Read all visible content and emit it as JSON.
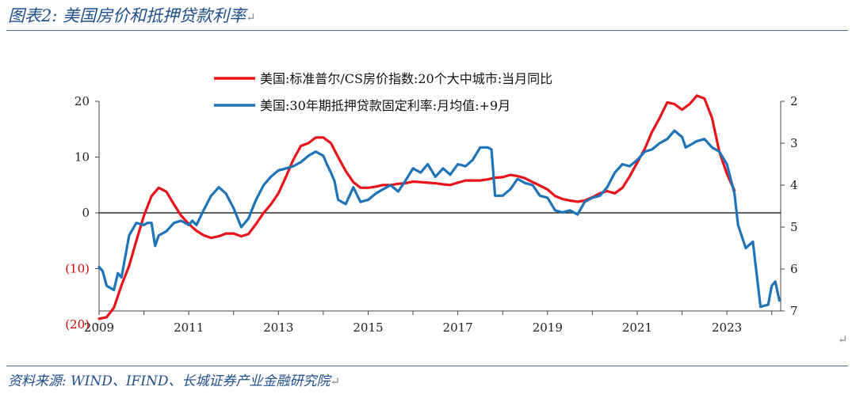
{
  "figure": {
    "title": "图表2:  美国房价和抵押贷款利率",
    "source": "资料来源:  WIND、IFIND、长城证券产业金融研究院",
    "return_mark": "↵"
  },
  "chart_data": {
    "type": "line",
    "x_axis": {
      "min": 2009,
      "max": 2024.2,
      "tick_labels": [
        "2009",
        "2011",
        "2013",
        "2015",
        "2017",
        "2019",
        "2021",
        "2023"
      ]
    },
    "y_left": {
      "min": -20,
      "max": 20,
      "ticks": [
        20,
        10,
        0,
        -10,
        -20
      ],
      "tick_labels": [
        "20",
        "10",
        "0",
        "(10)",
        "(20)"
      ]
    },
    "y_right": {
      "min": 2,
      "max": 7,
      "inverted": true,
      "ticks": [
        2,
        3,
        4,
        5,
        6,
        7
      ],
      "tick_labels": [
        "2",
        "3",
        "4",
        "5",
        "6",
        "7"
      ]
    },
    "grid": false,
    "legend": {
      "position": "top-center"
    },
    "colors": {
      "cs_index": "#e8141b",
      "mortgage_rate": "#1f73b7",
      "axis": "#444444"
    },
    "series": [
      {
        "name": "美国:标准普尔/CS房价指数:20个大中城市:当月同比",
        "axis": "left",
        "color": "#e8141b",
        "points": [
          [
            2009.0,
            -19.0
          ],
          [
            2009.17,
            -18.7
          ],
          [
            2009.33,
            -17.0
          ],
          [
            2009.5,
            -13.0
          ],
          [
            2009.67,
            -9.5
          ],
          [
            2009.83,
            -5.0
          ],
          [
            2010.0,
            -0.5
          ],
          [
            2010.17,
            3.0
          ],
          [
            2010.33,
            4.5
          ],
          [
            2010.5,
            3.8
          ],
          [
            2010.67,
            1.5
          ],
          [
            2010.83,
            -0.5
          ],
          [
            2011.0,
            -2.0
          ],
          [
            2011.17,
            -3.2
          ],
          [
            2011.33,
            -4.0
          ],
          [
            2011.5,
            -4.5
          ],
          [
            2011.67,
            -4.2
          ],
          [
            2011.83,
            -3.7
          ],
          [
            2012.0,
            -3.7
          ],
          [
            2012.17,
            -4.2
          ],
          [
            2012.33,
            -3.8
          ],
          [
            2012.5,
            -2.0
          ],
          [
            2012.67,
            0.0
          ],
          [
            2012.83,
            1.5
          ],
          [
            2013.0,
            3.5
          ],
          [
            2013.17,
            6.5
          ],
          [
            2013.33,
            9.5
          ],
          [
            2013.5,
            12.0
          ],
          [
            2013.67,
            12.5
          ],
          [
            2013.83,
            13.5
          ],
          [
            2014.0,
            13.5
          ],
          [
            2014.17,
            12.5
          ],
          [
            2014.33,
            10.0
          ],
          [
            2014.5,
            7.5
          ],
          [
            2014.67,
            5.5
          ],
          [
            2014.83,
            4.5
          ],
          [
            2015.0,
            4.5
          ],
          [
            2015.17,
            4.7
          ],
          [
            2015.33,
            5.0
          ],
          [
            2015.5,
            5.0
          ],
          [
            2015.67,
            5.2
          ],
          [
            2015.83,
            5.3
          ],
          [
            2016.0,
            5.6
          ],
          [
            2016.17,
            5.5
          ],
          [
            2016.33,
            5.4
          ],
          [
            2016.5,
            5.3
          ],
          [
            2016.67,
            5.1
          ],
          [
            2016.83,
            5.0
          ],
          [
            2017.0,
            5.4
          ],
          [
            2017.17,
            5.8
          ],
          [
            2017.33,
            5.8
          ],
          [
            2017.5,
            5.8
          ],
          [
            2017.67,
            6.0
          ],
          [
            2017.83,
            6.3
          ],
          [
            2018.0,
            6.4
          ],
          [
            2018.17,
            6.8
          ],
          [
            2018.33,
            6.6
          ],
          [
            2018.5,
            6.2
          ],
          [
            2018.67,
            5.5
          ],
          [
            2018.83,
            4.9
          ],
          [
            2019.0,
            4.2
          ],
          [
            2019.17,
            3.0
          ],
          [
            2019.33,
            2.5
          ],
          [
            2019.5,
            2.2
          ],
          [
            2019.67,
            2.0
          ],
          [
            2019.83,
            2.2
          ],
          [
            2020.0,
            2.8
          ],
          [
            2020.17,
            3.5
          ],
          [
            2020.33,
            3.9
          ],
          [
            2020.5,
            3.5
          ],
          [
            2020.67,
            4.5
          ],
          [
            2020.83,
            6.5
          ],
          [
            2021.0,
            9.0
          ],
          [
            2021.17,
            11.5
          ],
          [
            2021.33,
            14.5
          ],
          [
            2021.5,
            17.0
          ],
          [
            2021.67,
            19.8
          ],
          [
            2021.83,
            19.5
          ],
          [
            2022.0,
            18.5
          ],
          [
            2022.17,
            19.5
          ],
          [
            2022.33,
            21.0
          ],
          [
            2022.5,
            20.5
          ],
          [
            2022.67,
            17.0
          ],
          [
            2022.83,
            11.0
          ],
          [
            2023.0,
            7.0
          ],
          [
            2023.17,
            4.0
          ]
        ]
      },
      {
        "name": "美国:30年期抵押贷款固定利率:月均值:+9月",
        "axis": "right",
        "color": "#1f73b7",
        "points": [
          [
            2009.0,
            5.95
          ],
          [
            2009.08,
            6.05
          ],
          [
            2009.17,
            6.4
          ],
          [
            2009.33,
            6.5
          ],
          [
            2009.42,
            6.1
          ],
          [
            2009.5,
            6.2
          ],
          [
            2009.67,
            5.2
          ],
          [
            2009.83,
            4.9
          ],
          [
            2010.0,
            4.95
          ],
          [
            2010.08,
            4.9
          ],
          [
            2010.17,
            4.9
          ],
          [
            2010.25,
            5.45
          ],
          [
            2010.33,
            5.2
          ],
          [
            2010.5,
            5.1
          ],
          [
            2010.67,
            4.9
          ],
          [
            2010.83,
            4.85
          ],
          [
            2011.0,
            4.95
          ],
          [
            2011.08,
            4.85
          ],
          [
            2011.17,
            4.95
          ],
          [
            2011.33,
            4.6
          ],
          [
            2011.5,
            4.25
          ],
          [
            2011.67,
            4.05
          ],
          [
            2011.83,
            4.2
          ],
          [
            2012.0,
            4.55
          ],
          [
            2012.17,
            5.0
          ],
          [
            2012.33,
            4.8
          ],
          [
            2012.5,
            4.35
          ],
          [
            2012.67,
            4.0
          ],
          [
            2012.83,
            3.8
          ],
          [
            2013.0,
            3.65
          ],
          [
            2013.17,
            3.6
          ],
          [
            2013.33,
            3.55
          ],
          [
            2013.5,
            3.45
          ],
          [
            2013.67,
            3.3
          ],
          [
            2013.83,
            3.2
          ],
          [
            2014.0,
            3.3
          ],
          [
            2014.08,
            3.5
          ],
          [
            2014.17,
            3.7
          ],
          [
            2014.25,
            3.9
          ],
          [
            2014.33,
            4.35
          ],
          [
            2014.5,
            4.45
          ],
          [
            2014.67,
            4.05
          ],
          [
            2014.83,
            4.4
          ],
          [
            2015.0,
            4.35
          ],
          [
            2015.17,
            4.2
          ],
          [
            2015.33,
            4.1
          ],
          [
            2015.5,
            4.0
          ],
          [
            2015.67,
            4.15
          ],
          [
            2015.83,
            3.9
          ],
          [
            2016.0,
            3.6
          ],
          [
            2016.17,
            3.7
          ],
          [
            2016.33,
            3.5
          ],
          [
            2016.5,
            3.8
          ],
          [
            2016.67,
            3.6
          ],
          [
            2016.83,
            3.75
          ],
          [
            2017.0,
            3.5
          ],
          [
            2017.17,
            3.55
          ],
          [
            2017.33,
            3.4
          ],
          [
            2017.5,
            3.1
          ],
          [
            2017.67,
            3.1
          ],
          [
            2017.75,
            3.15
          ],
          [
            2017.83,
            4.25
          ],
          [
            2018.0,
            4.25
          ],
          [
            2018.17,
            4.1
          ],
          [
            2018.33,
            3.85
          ],
          [
            2018.5,
            3.95
          ],
          [
            2018.67,
            4.0
          ],
          [
            2018.83,
            4.25
          ],
          [
            2019.0,
            4.3
          ],
          [
            2019.17,
            4.6
          ],
          [
            2019.33,
            4.65
          ],
          [
            2019.5,
            4.6
          ],
          [
            2019.67,
            4.7
          ],
          [
            2019.83,
            4.4
          ],
          [
            2020.0,
            4.3
          ],
          [
            2020.17,
            4.25
          ],
          [
            2020.33,
            4.05
          ],
          [
            2020.5,
            3.7
          ],
          [
            2020.67,
            3.5
          ],
          [
            2020.83,
            3.55
          ],
          [
            2021.0,
            3.4
          ],
          [
            2021.17,
            3.2
          ],
          [
            2021.33,
            3.15
          ],
          [
            2021.5,
            3.0
          ],
          [
            2021.67,
            2.9
          ],
          [
            2021.83,
            2.7
          ],
          [
            2022.0,
            2.85
          ],
          [
            2022.08,
            3.1
          ],
          [
            2022.17,
            3.05
          ],
          [
            2022.33,
            2.95
          ],
          [
            2022.5,
            2.9
          ],
          [
            2022.67,
            3.1
          ],
          [
            2022.83,
            3.2
          ],
          [
            2023.0,
            3.5
          ],
          [
            2023.17,
            4.2
          ],
          [
            2023.25,
            4.95
          ],
          [
            2023.42,
            5.5
          ],
          [
            2023.58,
            5.35
          ],
          [
            2023.75,
            6.9
          ],
          [
            2023.92,
            6.85
          ],
          [
            2024.0,
            6.4
          ],
          [
            2024.08,
            6.3
          ],
          [
            2024.17,
            6.75
          ]
        ]
      }
    ]
  }
}
